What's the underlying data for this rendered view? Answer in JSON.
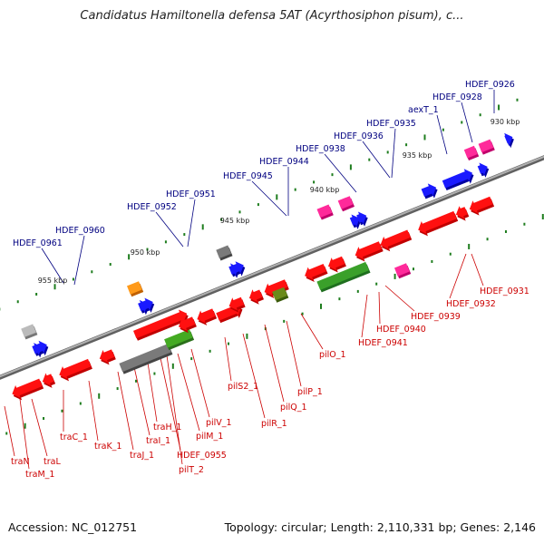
{
  "title": "Candidatus Hamiltonella defensa 5AT (Acyrthosiphon pisum), c...",
  "footer": {
    "accession": "Accession: NC_012751",
    "summary": "Topology: circular; Length: 2,110,331 bp; Genes: 2,146"
  },
  "colors": {
    "backbone": "#808080",
    "forward_label": "#000080",
    "reverse_label": "#cc0000",
    "tick": "#1e7d1e"
  },
  "scale_labels": [
    "955 kbp",
    "950 kbp",
    "945 kbp",
    "940 kbp",
    "935 kbp",
    "930 kbp"
  ],
  "forward_labels": [
    "HDEF_0961",
    "HDEF_0960",
    "HDEF_0952",
    "HDEF_0951",
    "HDEF_0945",
    "HDEF_0944",
    "HDEF_0938",
    "HDEF_0936",
    "HDEF_0935",
    "aexT_1",
    "HDEF_0928",
    "HDEF_0926"
  ],
  "reverse_labels": [
    "traN",
    "traM_1",
    "traL",
    "traC_1",
    "traK_1",
    "traJ_1",
    "traI_1",
    "traH_1",
    "HDEF_0955",
    "pilT_2",
    "pilM_1",
    "pilV_1",
    "pilS2_1",
    "pilR_1",
    "pilQ_1",
    "pilP_1",
    "pilO_1",
    "HDEF_0941",
    "HDEF_0940",
    "HDEF_0939",
    "HDEF_0932",
    "HDEF_0931"
  ]
}
